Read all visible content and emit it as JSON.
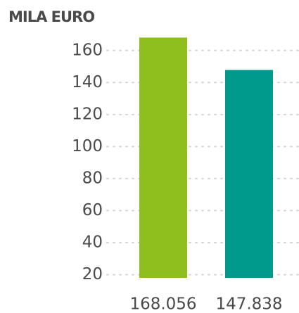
{
  "chart_data": {
    "type": "bar",
    "y_axis_label": "MILA EURO",
    "categories": [
      null,
      null
    ],
    "values": [
      168.056,
      147.838
    ],
    "colors": [
      "#8fbe1f",
      "#009a8c"
    ],
    "ylim": [
      18,
      170
    ],
    "yticks": [
      20,
      40,
      60,
      80,
      100,
      120,
      140,
      160
    ],
    "grid": true
  }
}
